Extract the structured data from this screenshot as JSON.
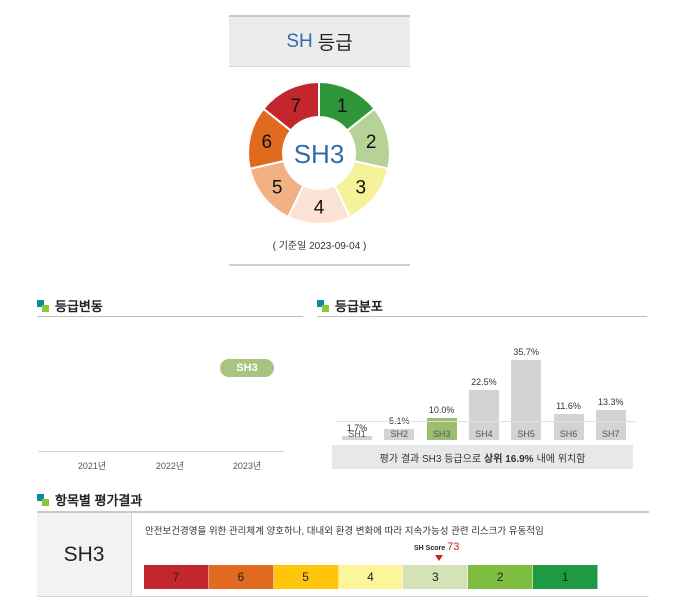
{
  "grade_card": {
    "prefix": "SH",
    "title_suffix": "등급",
    "center": "SH3",
    "base_date": "( 기준일 2023-09-04 )",
    "segments": [
      {
        "label": "1",
        "color": "#2e9638"
      },
      {
        "label": "2",
        "color": "#b7d296"
      },
      {
        "label": "3",
        "color": "#f5f29a"
      },
      {
        "label": "4",
        "color": "#fbe2d4"
      },
      {
        "label": "5",
        "color": "#f2b185"
      },
      {
        "label": "6",
        "color": "#e06a1d"
      },
      {
        "label": "7",
        "color": "#c4262e"
      }
    ]
  },
  "change": {
    "title": "등급변동",
    "badge": "SH3",
    "years": [
      "2021년",
      "2022년",
      "2023년"
    ]
  },
  "distribution": {
    "title": "등급분포",
    "note_pre": "평가 결과 SH3 등급으로",
    "note_bold": "상위 16.9%",
    "note_post": "내에 위치함"
  },
  "chart_data": {
    "type": "bar",
    "categories": [
      "SH1",
      "SH2",
      "SH3",
      "SH4",
      "SH5",
      "SH6",
      "SH7"
    ],
    "values": [
      1.7,
      5.1,
      10.0,
      22.5,
      35.7,
      11.6,
      13.3
    ],
    "value_labels": [
      "1.7%",
      "5.1%",
      "10.0%",
      "22.5%",
      "35.7%",
      "11.6%",
      "13.3%"
    ],
    "highlight": "SH3",
    "ylim": [
      0,
      35.7
    ],
    "colors": {
      "default": "#d3d3d3",
      "highlight": "#9cbd6e"
    }
  },
  "evaluation": {
    "title": "항목별 평가결과",
    "grade": "SH3",
    "description": "안전보건경영을 위한 관리체계 양호하나, 대내외 환경 변화에 따라 지속가능성 관련 리스크가 유동적임",
    "score_label": "SH Score",
    "score_value": "73",
    "scale": [
      {
        "label": "7",
        "color": "#c4262e"
      },
      {
        "label": "6",
        "color": "#e06a1d"
      },
      {
        "label": "5",
        "color": "#ffc60b"
      },
      {
        "label": "4",
        "color": "#fdf59a"
      },
      {
        "label": "3",
        "color": "#d3e3b5"
      },
      {
        "label": "2",
        "color": "#7fbd41"
      },
      {
        "label": "1",
        "color": "#1f9a44"
      }
    ]
  }
}
